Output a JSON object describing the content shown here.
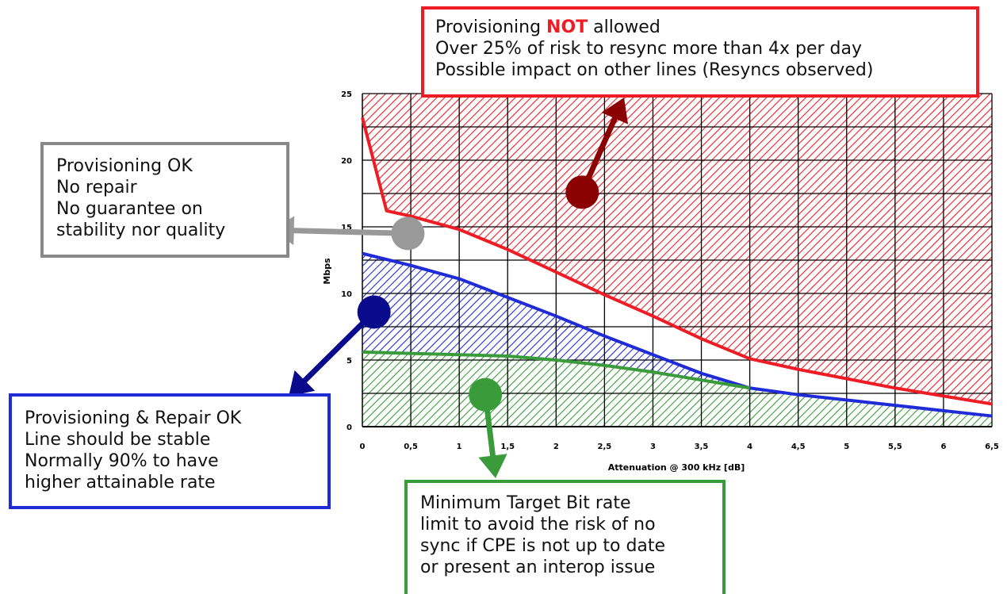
{
  "chart_data": {
    "type": "area",
    "x_axis": {
      "label": "Attenuation @ 300 kHz [dB]",
      "range": [
        0,
        6.5
      ],
      "ticks": [
        "0",
        "0,5",
        "1",
        "1,5",
        "2",
        "2,5",
        "3",
        "3,5",
        "4",
        "4,5",
        "5",
        "5,5",
        "6",
        "6,5"
      ]
    },
    "y_axis": {
      "label": "Mbps",
      "range": [
        0,
        25
      ],
      "ticks": [
        "0",
        "5",
        "10",
        "15",
        "20",
        "25"
      ]
    },
    "grid": true,
    "series": [
      {
        "key": "red",
        "color": "#ee1c25",
        "fill": "hatch-red",
        "x": [
          0,
          0.25,
          0.5,
          1,
          1.5,
          2,
          2.5,
          3,
          3.5,
          4,
          4.5,
          5,
          5.5,
          6,
          6.5
        ],
        "y": [
          23.2,
          16.2,
          15.8,
          14.8,
          13.3,
          11.6,
          9.9,
          8.3,
          6.6,
          5.1,
          4.3,
          3.6,
          2.9,
          2.3,
          1.7
        ]
      },
      {
        "key": "blue",
        "color": "#1f2bd6",
        "fill": "hatch-blue",
        "x": [
          0,
          0.5,
          1,
          1.5,
          2,
          2.5,
          3,
          3.5,
          4,
          4.5,
          5,
          5.5,
          6,
          6.5
        ],
        "y": [
          13.0,
          12.1,
          11.1,
          9.7,
          8.3,
          6.8,
          5.4,
          4.0,
          2.9,
          2.4,
          2.0,
          1.6,
          1.2,
          0.8
        ]
      },
      {
        "key": "green",
        "color": "#3a9b3a",
        "fill": "hatch-green",
        "x": [
          0,
          0.5,
          1,
          1.5,
          2,
          2.5,
          3,
          3.5,
          4
        ],
        "y": [
          5.6,
          5.5,
          5.4,
          5.3,
          5.0,
          4.6,
          4.1,
          3.5,
          2.9
        ]
      }
    ],
    "annotations": [
      {
        "key": "not-allowed",
        "lines": [
          "Provisioning NOT allowed",
          "Over 25% of risk to resync more than 4x per day",
          "Possible impact on other lines (Resyncs observed)"
        ]
      },
      {
        "key": "ok",
        "lines": [
          "Provisioning  OK",
          "No repair",
          "No guarantee on",
          "stability nor quality"
        ]
      },
      {
        "key": "repair",
        "lines": [
          "Provisioning  & Repair OK",
          "Line should be stable",
          "Normally 90% to have",
          "higher attainable rate"
        ]
      },
      {
        "key": "min",
        "lines": [
          "Minimum Target Bit rate",
          "limit to avoid the risk of no",
          "sync if CPE is not up to date",
          "or present an interop issue"
        ]
      }
    ],
    "markers": [
      {
        "key": "not-allowed",
        "color": "#8b0000",
        "x": 2.27,
        "y": 17.6
      },
      {
        "key": "ok",
        "color": "#999999",
        "x": 0.47,
        "y": 14.5
      },
      {
        "key": "repair",
        "color": "#0a0a8c",
        "x": 0.12,
        "y": 8.6
      },
      {
        "key": "min",
        "color": "#3a9b3a",
        "x": 1.27,
        "y": 2.4
      }
    ]
  },
  "callouts": {
    "not_allowed": {
      "pre": "Provisioning ",
      "emph": "NOT",
      "post": " allowed",
      "line2": "Over 25% of risk to resync more than 4x per day",
      "line3": "Possible impact on other lines (Resyncs observed)"
    },
    "ok": [
      "Provisioning  OK",
      "No repair",
      "No guarantee on",
      "stability nor quality"
    ],
    "repair": [
      "Provisioning  & Repair OK",
      "Line should be stable",
      "Normally 90% to have",
      "higher attainable rate"
    ],
    "min": [
      "Minimum Target Bit rate",
      "limit to avoid the risk of no",
      "sync if CPE is not up to date",
      "or present an interop issue"
    ]
  }
}
